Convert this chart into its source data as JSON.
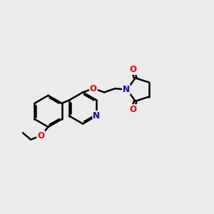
{
  "background_color": "#ebebeb",
  "bond_color": "#000000",
  "cO": "#ff0000",
  "cN": "#0000ff",
  "lw": 1.8,
  "dbo": 0.055,
  "fs": 8.5,
  "figsize": [
    3.0,
    3.0
  ],
  "dpi": 100,
  "xlim": [
    0.0,
    10.0
  ],
  "ylim": [
    1.5,
    8.5
  ]
}
